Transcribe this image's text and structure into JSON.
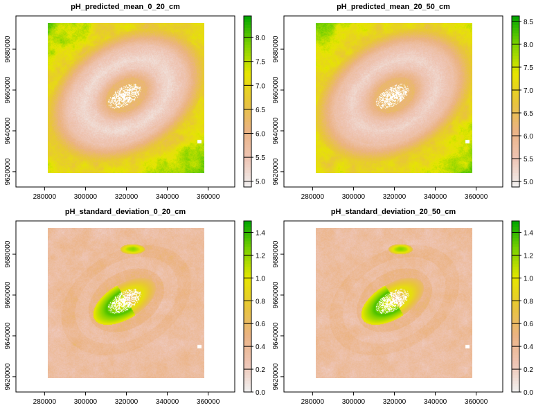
{
  "chart_data": [
    {
      "type": "heatmap",
      "title": "pH_predicted_mean_0_20_cm",
      "xlim": [
        266000,
        373000
      ],
      "ylim": [
        9612500,
        9696300
      ],
      "raster_extent": {
        "x": [
          281700,
          358000
        ],
        "y": [
          9619300,
          9693000
        ]
      },
      "x_ticks": [
        "280000",
        "300000",
        "320000",
        "340000",
        "360000"
      ],
      "y_ticks": [
        "9620000",
        "9640000",
        "9660000",
        "9680000"
      ],
      "legend": {
        "range": [
          4.88,
          8.45
        ],
        "ticks": [
          "5.0",
          "5.5",
          "6.0",
          "6.5",
          "7.0",
          "7.5",
          "8.0"
        ],
        "placement": "right"
      },
      "palette": [
        "#F2F2F2",
        "#EEC5B5",
        "#EBB383",
        "#E8C53A",
        "#E6E600",
        "#7ED200",
        "#00A600"
      ]
    },
    {
      "type": "heatmap",
      "title": "pH_predicted_mean_20_50_cm",
      "xlim": [
        266000,
        373000
      ],
      "ylim": [
        9612500,
        9696300
      ],
      "raster_extent": {
        "x": [
          281700,
          358000
        ],
        "y": [
          9619300,
          9693000
        ]
      },
      "x_ticks": [
        "280000",
        "300000",
        "320000",
        "340000",
        "360000"
      ],
      "y_ticks": [
        "9620000",
        "9640000",
        "9660000",
        "9680000"
      ],
      "legend": {
        "range": [
          4.88,
          8.62
        ],
        "ticks": [
          "5.0",
          "5.5",
          "6.0",
          "6.5",
          "7.0",
          "7.5",
          "8.0",
          "8.5"
        ],
        "placement": "right"
      },
      "palette": [
        "#F2F2F2",
        "#EEC5B5",
        "#EBB383",
        "#E8C53A",
        "#E6E600",
        "#7ED200",
        "#00A600"
      ]
    },
    {
      "type": "heatmap",
      "title": "pH_standard_deviation_0_20_cm",
      "xlim": [
        266000,
        373000
      ],
      "ylim": [
        9612500,
        9696300
      ],
      "raster_extent": {
        "x": [
          281700,
          358000
        ],
        "y": [
          9619300,
          9693000
        ]
      },
      "x_ticks": [
        "280000",
        "300000",
        "320000",
        "340000",
        "360000"
      ],
      "y_ticks": [
        "9620000",
        "9640000",
        "9660000",
        "9680000"
      ],
      "legend": {
        "range": [
          0.0,
          1.5
        ],
        "ticks": [
          "0.0",
          "0.2",
          "0.4",
          "0.6",
          "0.8",
          "1.0",
          "1.2",
          "1.4"
        ],
        "placement": "right"
      },
      "palette": [
        "#F2F2F2",
        "#EEC5B5",
        "#EBB383",
        "#E8C53A",
        "#E6E600",
        "#7ED200",
        "#00A600"
      ]
    },
    {
      "type": "heatmap",
      "title": "pH_standard_deviation_20_50_cm",
      "xlim": [
        266000,
        373000
      ],
      "ylim": [
        9612500,
        9696300
      ],
      "raster_extent": {
        "x": [
          281700,
          358000
        ],
        "y": [
          9619300,
          9693000
        ]
      },
      "x_ticks": [
        "280000",
        "300000",
        "320000",
        "340000",
        "360000"
      ],
      "y_ticks": [
        "9620000",
        "9640000",
        "9660000",
        "9680000"
      ],
      "legend": {
        "range": [
          0.0,
          1.5
        ],
        "ticks": [
          "0.0",
          "0.2",
          "0.4",
          "0.6",
          "0.8",
          "1.0",
          "1.2",
          "1.4"
        ],
        "placement": "right"
      },
      "palette": [
        "#F2F2F2",
        "#EEC5B5",
        "#EBB383",
        "#E8C53A",
        "#E6E600",
        "#7ED200",
        "#00A600"
      ]
    }
  ]
}
